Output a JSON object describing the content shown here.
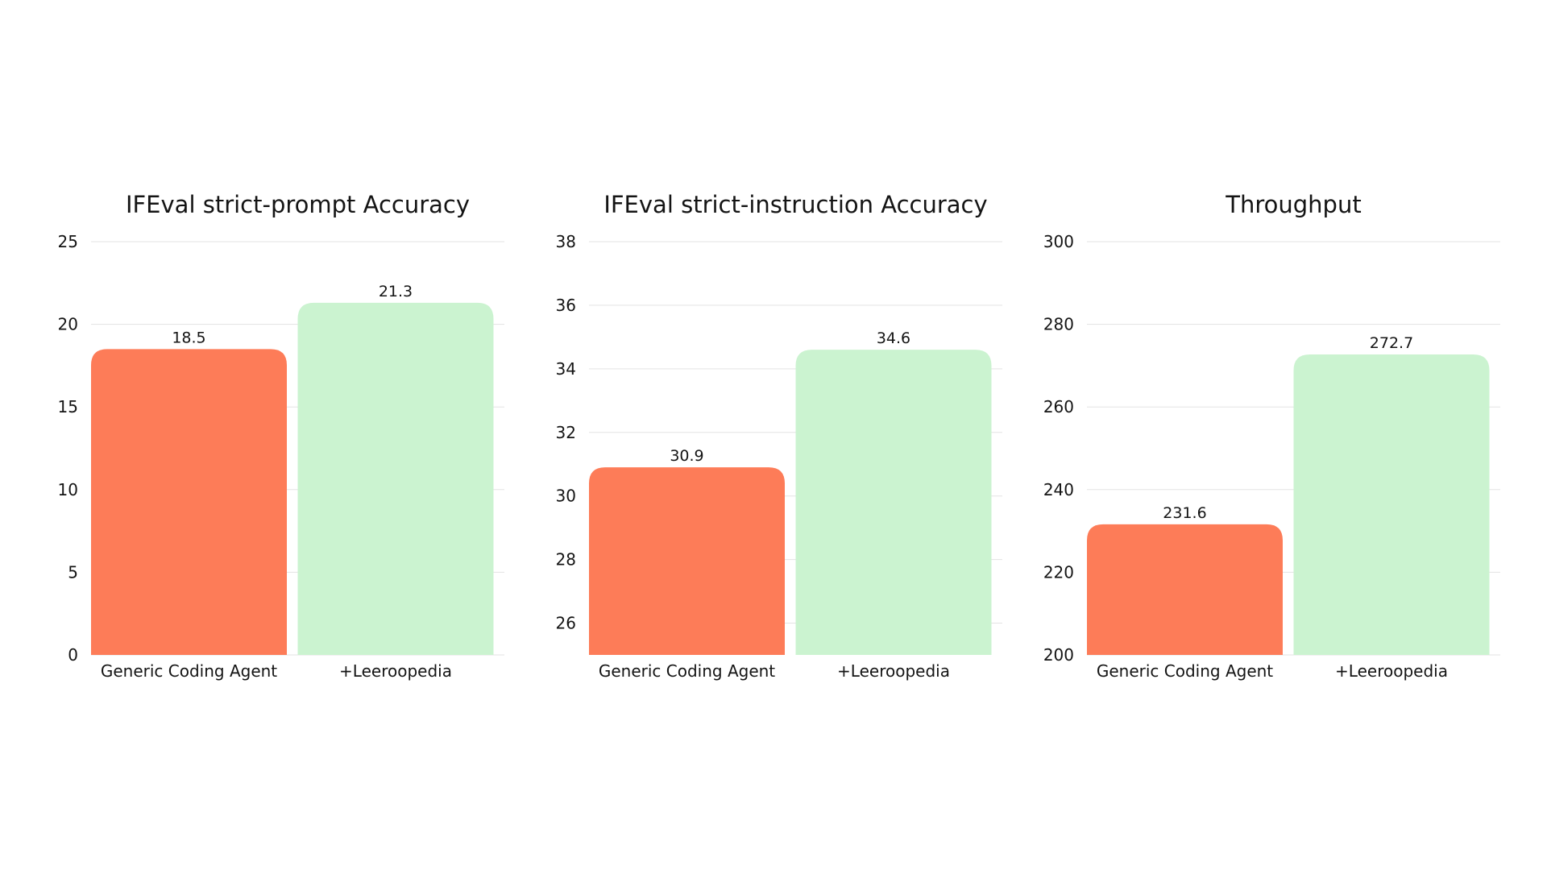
{
  "colors": {
    "baseline": "#FD7C58",
    "treatment": "#CBF3D0",
    "grid": "#E3E3E3",
    "text": "#141414"
  },
  "chart_data": [
    {
      "type": "bar",
      "title": "IFEval strict-prompt Accuracy",
      "categories": [
        "Generic Coding Agent",
        "+Leeroopedia"
      ],
      "values": [
        18.5,
        21.3
      ],
      "value_labels": [
        "18.5",
        "21.3"
      ],
      "ylim": [
        0,
        25
      ],
      "yticks": [
        "0",
        "5",
        "10",
        "15",
        "20",
        "25"
      ],
      "grid": true
    },
    {
      "type": "bar",
      "title": "IFEval strict-instruction Accuracy",
      "categories": [
        "Generic Coding Agent",
        "+Leeroopedia"
      ],
      "values": [
        30.9,
        34.6
      ],
      "value_labels": [
        "30.9",
        "34.6"
      ],
      "ylim": [
        25,
        38
      ],
      "yticks": [
        "26",
        "28",
        "30",
        "32",
        "34",
        "36",
        "38"
      ],
      "grid": true
    },
    {
      "type": "bar",
      "title": "Throughput",
      "categories": [
        "Generic Coding Agent",
        "+Leeroopedia"
      ],
      "values": [
        231.6,
        272.7
      ],
      "value_labels": [
        "231.6",
        "272.7"
      ],
      "ylim": [
        200,
        300
      ],
      "yticks": [
        "200",
        "220",
        "240",
        "260",
        "280",
        "300"
      ],
      "grid": true
    }
  ]
}
